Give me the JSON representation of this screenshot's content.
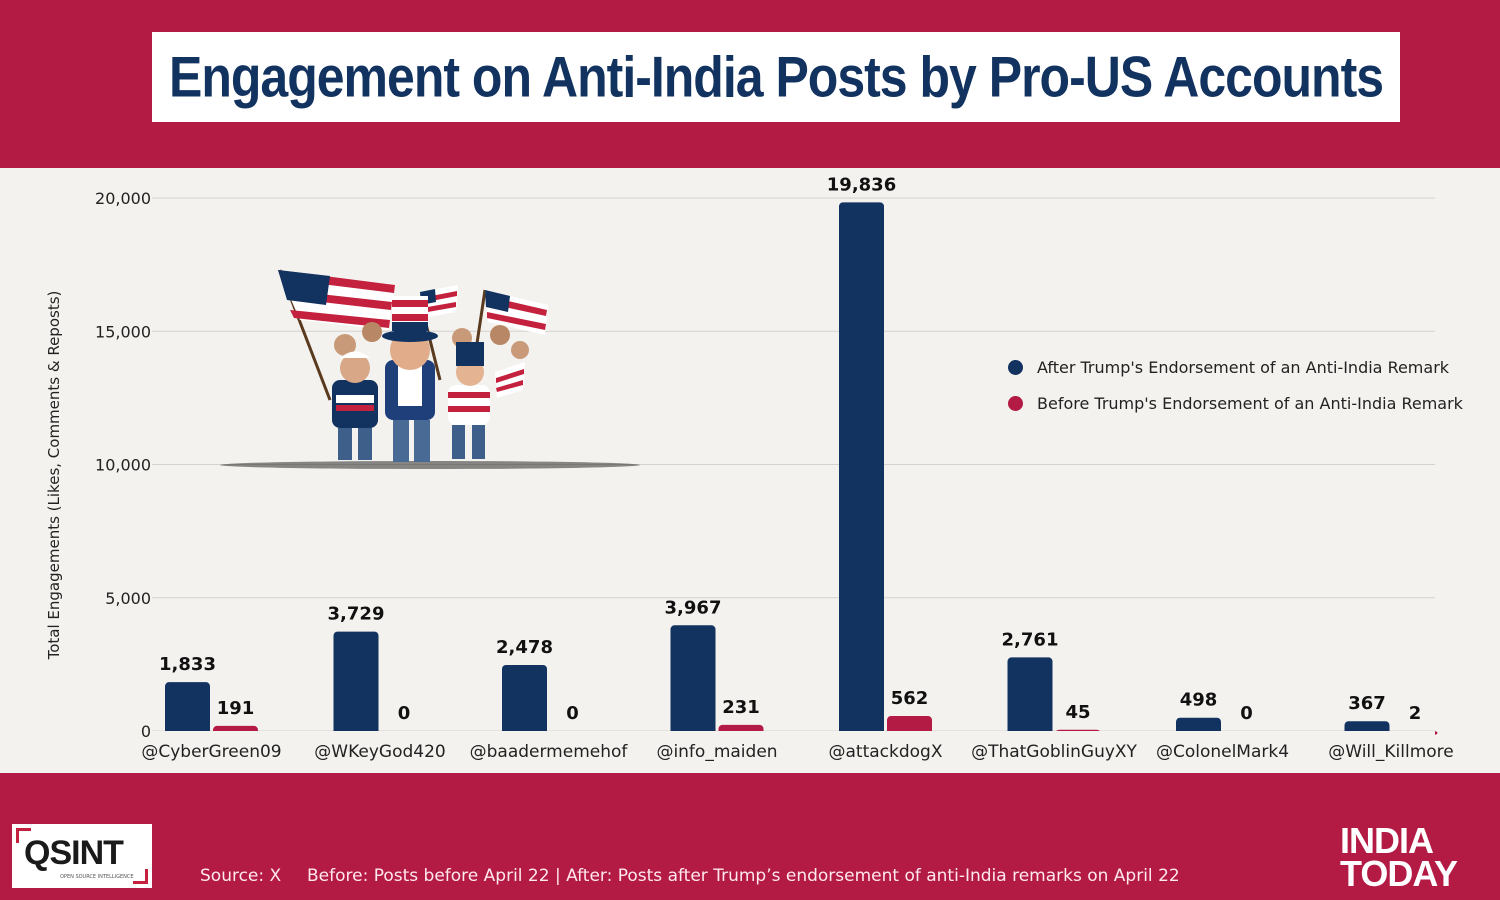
{
  "header": {
    "title": "Engagement on Anti-India Posts by Pro-US Accounts"
  },
  "chart_data": {
    "type": "bar",
    "title": "Engagement on Anti-India Posts by Pro-US Accounts",
    "ylabel": "Total Engagements (Likes, Comments & Reposts)",
    "xlabel": "",
    "ylim": [
      0,
      20000
    ],
    "yticks": [
      0,
      5000,
      10000,
      15000,
      20000
    ],
    "ytick_labels": [
      "0",
      "5,000",
      "10,000",
      "15,000",
      "20,000"
    ],
    "categories": [
      "@CyberGreen09",
      "@WKeyGod420",
      "@baadermemehof",
      "@info_maiden",
      "@attackdogX",
      "@ThatGoblinGuyXY",
      "@ColonelMark4",
      "@Will_Killmore"
    ],
    "series": [
      {
        "name": "After Trump's Endorsement of an Anti-India Remark",
        "color": "#12325f",
        "values": [
          1833,
          3729,
          2478,
          3967,
          19836,
          2761,
          498,
          367
        ],
        "labels": [
          "1,833",
          "3,729",
          "2,478",
          "3,967",
          "19,836",
          "2,761",
          "498",
          "367"
        ]
      },
      {
        "name": "Before Trump's Endorsement of an Anti-India Remark",
        "color": "#b31b45",
        "values": [
          191,
          0,
          0,
          231,
          562,
          45,
          0,
          2
        ],
        "labels": [
          "191",
          "0",
          "0",
          "231",
          "562",
          "45",
          "0",
          "2"
        ]
      }
    ],
    "grid": true,
    "legend_position": "right"
  },
  "footer": {
    "source": "Source: X",
    "note": "Before: Posts before April 22 | After: Posts after Trump’s endorsement of anti-India remarks on April 22",
    "logo_left": "QSINT",
    "logo_left_sub": "OPEN SOURCE INTELLIGENCE",
    "logo_right_line1": "INDIA",
    "logo_right_line2": "TODAY"
  }
}
